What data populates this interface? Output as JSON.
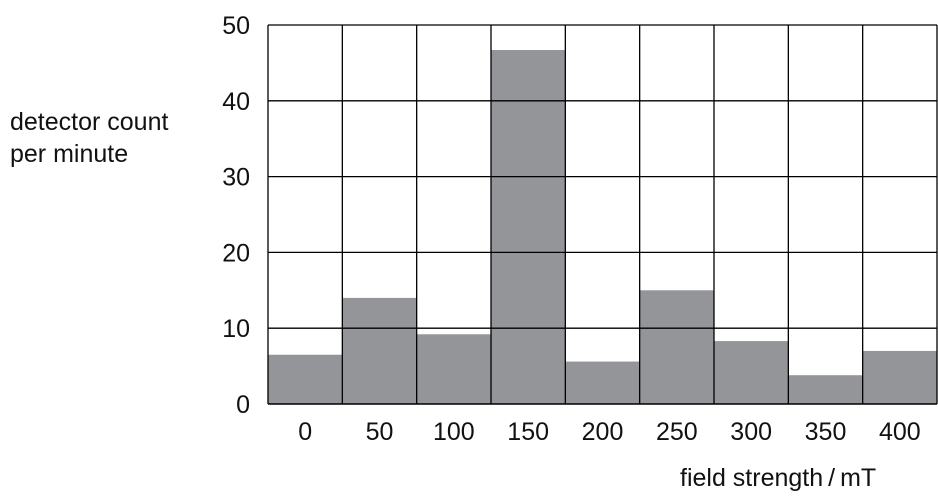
{
  "chart_data": {
    "type": "bar",
    "title": "",
    "xlabel": "field strength / mT",
    "ylabel": [
      "detector count",
      "per minute"
    ],
    "categories": [
      "0",
      "50",
      "100",
      "150",
      "200",
      "250",
      "300",
      "350",
      "400"
    ],
    "values": [
      6.5,
      14,
      9.2,
      46.7,
      5.6,
      15,
      8.3,
      3.8,
      7
    ],
    "ylim": [
      0,
      50
    ],
    "yticks": [
      "0",
      "10",
      "20",
      "30",
      "40",
      "50"
    ],
    "grid": true,
    "bar_color": "#939598",
    "grid_color": "#000000"
  }
}
